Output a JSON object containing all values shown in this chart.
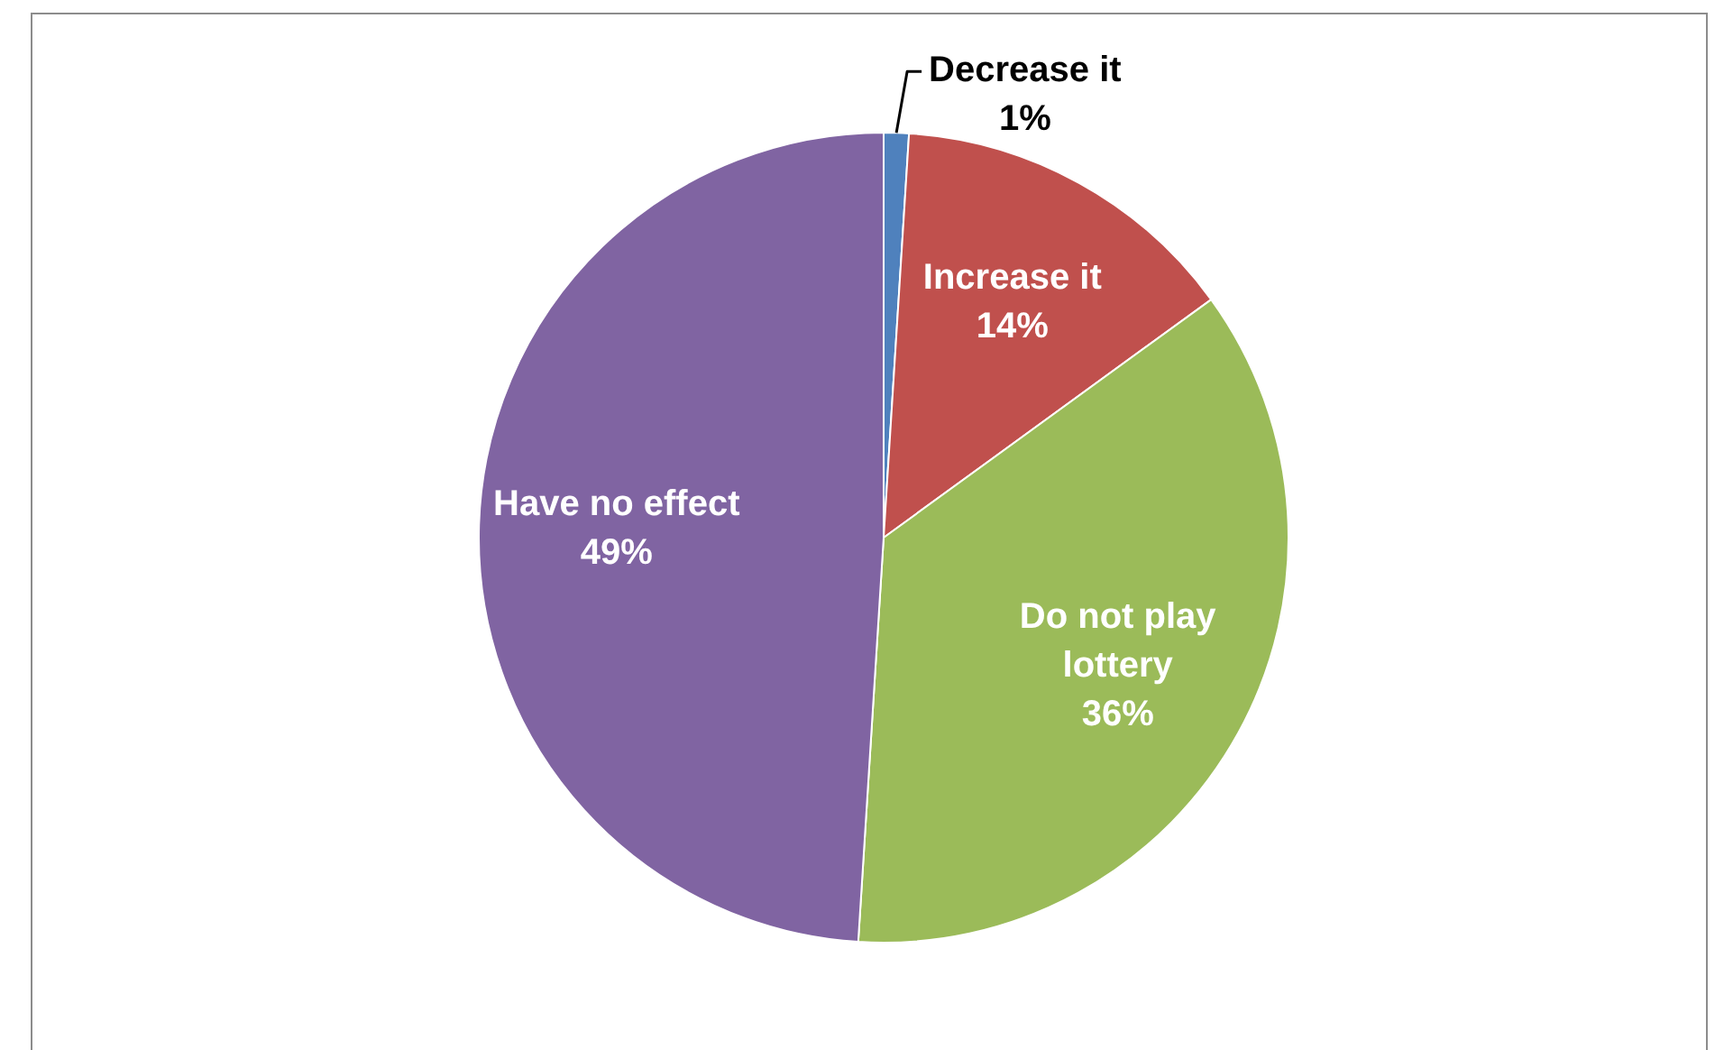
{
  "chart_data": {
    "type": "pie",
    "categories": [
      "Decrease it",
      "Increase it",
      "Do not play lottery",
      "Have no effect"
    ],
    "values": [
      1,
      14,
      36,
      49
    ],
    "colors": [
      "#4f81bd",
      "#c0504d",
      "#9bbb59",
      "#8064a2"
    ],
    "value_labels": [
      "1%",
      "14%",
      "36%",
      "49%"
    ],
    "legend": false
  }
}
